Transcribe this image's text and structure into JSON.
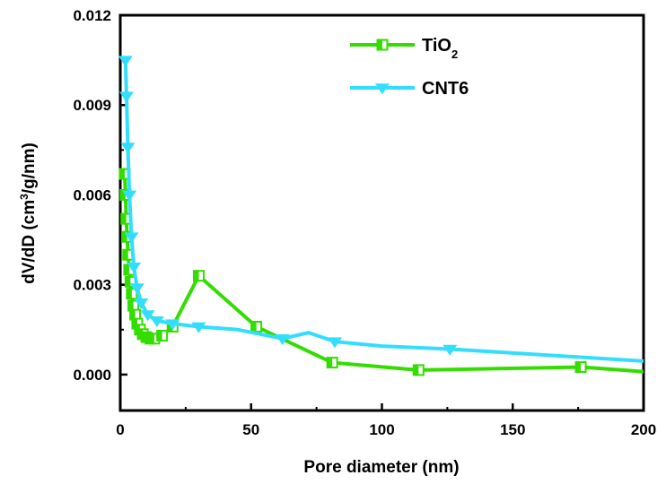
{
  "chart_data": {
    "type": "line",
    "xlabel": "Pore diameter (nm)",
    "ylabel_main": "dV/dD (cm",
    "ylabel_sup": "3",
    "ylabel_tail": "/g/nm)",
    "xlim": [
      0,
      200
    ],
    "ylim": [
      -0.0012,
      0.012
    ],
    "xticks": [
      0,
      50,
      100,
      150,
      200
    ],
    "xtick_labels": [
      "0",
      "50",
      "100",
      "150",
      "200"
    ],
    "yticks": [
      0.0,
      0.003,
      0.006,
      0.009,
      0.012
    ],
    "ytick_labels": [
      "0.000",
      "0.003",
      "0.006",
      "0.009",
      "0.012"
    ],
    "grid": false,
    "legend_position": "top-right",
    "series": [
      {
        "name_main": "TiO",
        "name_sub": "2",
        "color": "#33dd00",
        "marker": "square-open",
        "x": [
          1.7,
          2.0,
          2.3,
          2.6,
          3.0,
          3.4,
          3.9,
          4.4,
          5.0,
          5.7,
          6.5,
          7.5,
          8.6,
          10.0,
          11.5,
          13.0,
          16.0,
          20.0,
          30.0,
          52.0,
          81.0,
          114.0,
          176.0,
          200.0
        ],
        "y": [
          0.0067,
          0.006,
          0.0052,
          0.0046,
          0.004,
          0.0035,
          0.0031,
          0.0027,
          0.0023,
          0.002,
          0.0017,
          0.0015,
          0.00135,
          0.00125,
          0.0012,
          0.0012,
          0.0013,
          0.0016,
          0.0033,
          0.0016,
          0.0004,
          0.00015,
          0.00025,
          0.0001
        ],
        "marker_x": [
          1.7,
          2.0,
          2.3,
          2.6,
          3.0,
          3.4,
          3.9,
          4.4,
          5.0,
          5.7,
          6.5,
          7.5,
          8.6,
          10.0,
          11.5,
          13.0,
          16.0,
          20.0,
          30.0,
          52.0,
          81.0,
          114.0,
          176.0
        ]
      },
      {
        "name_main": "CNT6",
        "name_sub": "",
        "color": "#33ddff",
        "marker": "triangle-down",
        "x": [
          2.0,
          2.4,
          2.9,
          3.5,
          4.3,
          5.2,
          6.4,
          8.0,
          10.5,
          14.0,
          20.0,
          30.0,
          45.0,
          62.0,
          72.0,
          82.0,
          100.0,
          126.0,
          200.0
        ],
        "y": [
          0.0105,
          0.0093,
          0.0076,
          0.006,
          0.0046,
          0.0036,
          0.0029,
          0.0024,
          0.002,
          0.0018,
          0.0017,
          0.0016,
          0.0015,
          0.0012,
          0.0014,
          0.0011,
          0.00095,
          0.00085,
          0.00045
        ],
        "marker_x": [
          2.0,
          2.4,
          2.9,
          3.5,
          4.3,
          5.2,
          6.4,
          8.0,
          10.5,
          14.0,
          20.0,
          30.0,
          62.0,
          82.0,
          126.0
        ]
      }
    ]
  }
}
